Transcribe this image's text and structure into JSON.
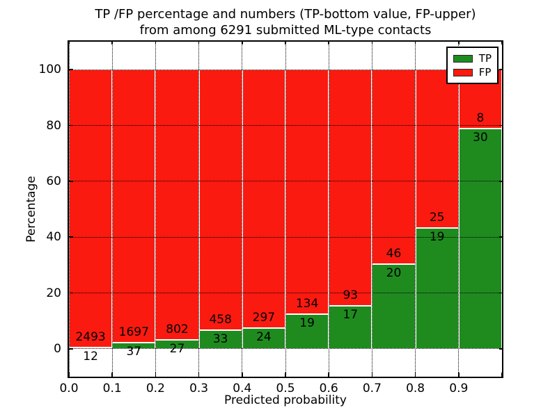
{
  "title": {
    "line1": "TP /FP percentage and numbers (TP-bottom value, FP-upper)",
    "line2": "from among 6291 submitted ML-type contacts"
  },
  "axes": {
    "xlabel": "Predicted probability",
    "ylabel": "Percentage",
    "x_tick_labels": [
      "0.0",
      "0.1",
      "0.2",
      "0.3",
      "0.4",
      "0.5",
      "0.6",
      "0.7",
      "0.8",
      "0.9"
    ],
    "y_tick_values": [
      0,
      20,
      40,
      60,
      80,
      100
    ],
    "y_tick_labels": [
      "0",
      "20",
      "40",
      "60",
      "80",
      "100"
    ],
    "xlim": [
      0.0,
      1.0
    ],
    "ylim": [
      -10,
      110
    ]
  },
  "legend": {
    "position": "upper right",
    "entries": [
      {
        "label": "TP",
        "color": "#1f8b1f"
      },
      {
        "label": "FP",
        "color": "#fa1a10"
      }
    ]
  },
  "colors": {
    "tp_green": "#1f8b1f",
    "fp_red": "#fa1a10",
    "bar_edge": "#ffffff",
    "grid": "#000000",
    "background": "#ffffff"
  },
  "chart_data": {
    "type": "bar",
    "stacked": true,
    "normalized": "each bin scaled to 100%",
    "total_contacts": 6291,
    "title": "TP /FP percentage and numbers (TP-bottom value, FP-upper) from among 6291 submitted ML-type contacts",
    "xlabel": "Predicted probability",
    "ylabel": "Percentage",
    "xlim": [
      0.0,
      1.0
    ],
    "ylim": [
      -10,
      110
    ],
    "grid": true,
    "bin_edges": [
      0.0,
      0.1,
      0.2,
      0.3,
      0.4,
      0.5,
      0.6,
      0.7,
      0.8,
      0.9,
      1.0
    ],
    "categories": [
      "0.0",
      "0.1",
      "0.2",
      "0.3",
      "0.4",
      "0.5",
      "0.6",
      "0.7",
      "0.8",
      "0.9"
    ],
    "series": [
      {
        "name": "TP",
        "color": "#1f8b1f",
        "counts": [
          12,
          37,
          27,
          33,
          24,
          19,
          17,
          20,
          19,
          30
        ],
        "percent": [
          0.48,
          2.13,
          3.26,
          6.72,
          7.48,
          12.42,
          15.45,
          30.3,
          43.18,
          78.95
        ]
      },
      {
        "name": "FP",
        "color": "#fa1a10",
        "counts": [
          2493,
          1697,
          802,
          458,
          297,
          134,
          93,
          46,
          25,
          8
        ],
        "percent": [
          99.52,
          97.87,
          96.74,
          93.28,
          92.52,
          87.58,
          84.55,
          69.7,
          56.82,
          21.05
        ]
      }
    ],
    "annotations": "FP count printed above the TP/FP boundary, TP count printed below it, per bar"
  }
}
